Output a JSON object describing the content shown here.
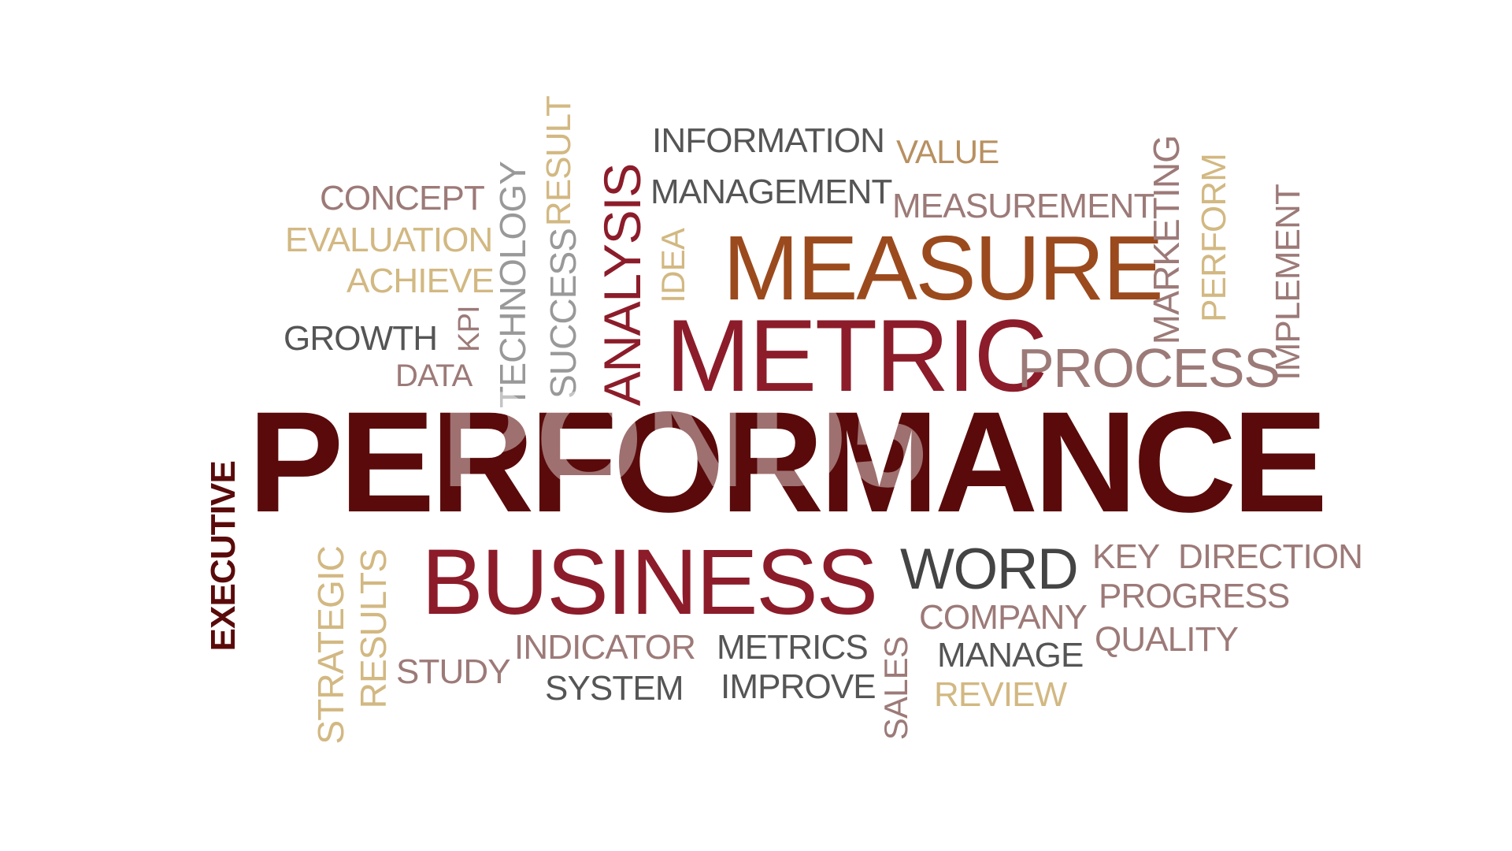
{
  "colors": {
    "background": "#ffffff",
    "dark_maroon": "#5a0a0a",
    "maroon": "#8c1c2a",
    "brown": "#9b4a1e",
    "tan": "#d2b882",
    "gray": "#555555",
    "dusty_rose": "#9c7a78",
    "watermark": "rgba(255,255,255,0.42)"
  },
  "words": {
    "performance": "PERFORMANCE",
    "measure": "MEASURE",
    "metric": "METRIC",
    "business": "BUSINESS",
    "process": "PROCESS",
    "word": "WORD",
    "executive": "EXECUTIVE",
    "analysis": "ANALYSIS",
    "information": "INFORMATION",
    "management": "MANAGEMENT",
    "value": "VALUE",
    "measurement": "MEASUREMENT",
    "concept": "CONCEPT",
    "evaluation": "EVALUATION",
    "achieve": "ACHIEVE",
    "growth": "GROWTH",
    "data": "DATA",
    "kpi": "KPI",
    "technology": "TECHNOLOGY",
    "success": "SUCCESS",
    "result": "RESULT",
    "idea": "IDEA",
    "marketing": "MARKETING",
    "perform": "PERFORM",
    "implement": "IMPLEMENT",
    "key": "KEY",
    "direction": "DIRECTION",
    "progress": "PROGRESS",
    "company": "COMPANY",
    "quality": "QUALITY",
    "manage": "MANAGE",
    "review": "REVIEW",
    "sales": "SALES",
    "metrics": "METRICS",
    "improve": "IMPROVE",
    "indicator": "INDICATOR",
    "system": "SYSTEM",
    "study": "STUDY",
    "strategic": "STRATEGIC",
    "results": "RESULTS"
  },
  "watermark": {
    "text": "POND5"
  }
}
